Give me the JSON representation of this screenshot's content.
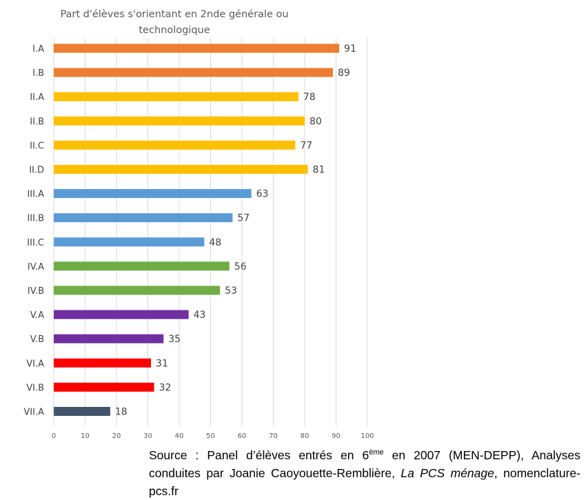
{
  "chart_data": {
    "type": "bar",
    "orientation": "horizontal",
    "title_lines": [
      "Part d'élèves s'orientant en 2nde générale ou",
      "technologique"
    ],
    "categories": [
      "I.A",
      "I.B",
      "II.A",
      "II.B",
      "II.C",
      "II.D",
      "III.A",
      "III.B",
      "III.C",
      "IV.A",
      "IV.B",
      "V.A",
      "V.B",
      "VI.A",
      "VI.B",
      "VII.A"
    ],
    "values": [
      91,
      89,
      78,
      80,
      77,
      81,
      63,
      57,
      48,
      56,
      53,
      43,
      35,
      31,
      32,
      18
    ],
    "bar_colors": [
      "#ED7D31",
      "#ED7D31",
      "#FFC000",
      "#FFC000",
      "#FFC000",
      "#FFC000",
      "#5B9BD5",
      "#5B9BD5",
      "#5B9BD5",
      "#70AD47",
      "#70AD47",
      "#7030A0",
      "#7030A0",
      "#FF0000",
      "#FF0000",
      "#44546A"
    ],
    "xlim": [
      0,
      100
    ],
    "xticks": [
      0,
      10,
      20,
      30,
      40,
      50,
      60,
      70,
      80,
      90,
      100
    ],
    "grid": "vertical",
    "data_labels": true
  },
  "source": {
    "prefix": "Source : Panel d’élèves entrés en 6",
    "sup": "ème",
    "middle": " en 2007 (MEN-DEPP), Analyses conduites par Joanie Caoyouette-Remblière, ",
    "italic": "La PCS ménage",
    "suffix": ", nomenclature-pcs.fr"
  }
}
